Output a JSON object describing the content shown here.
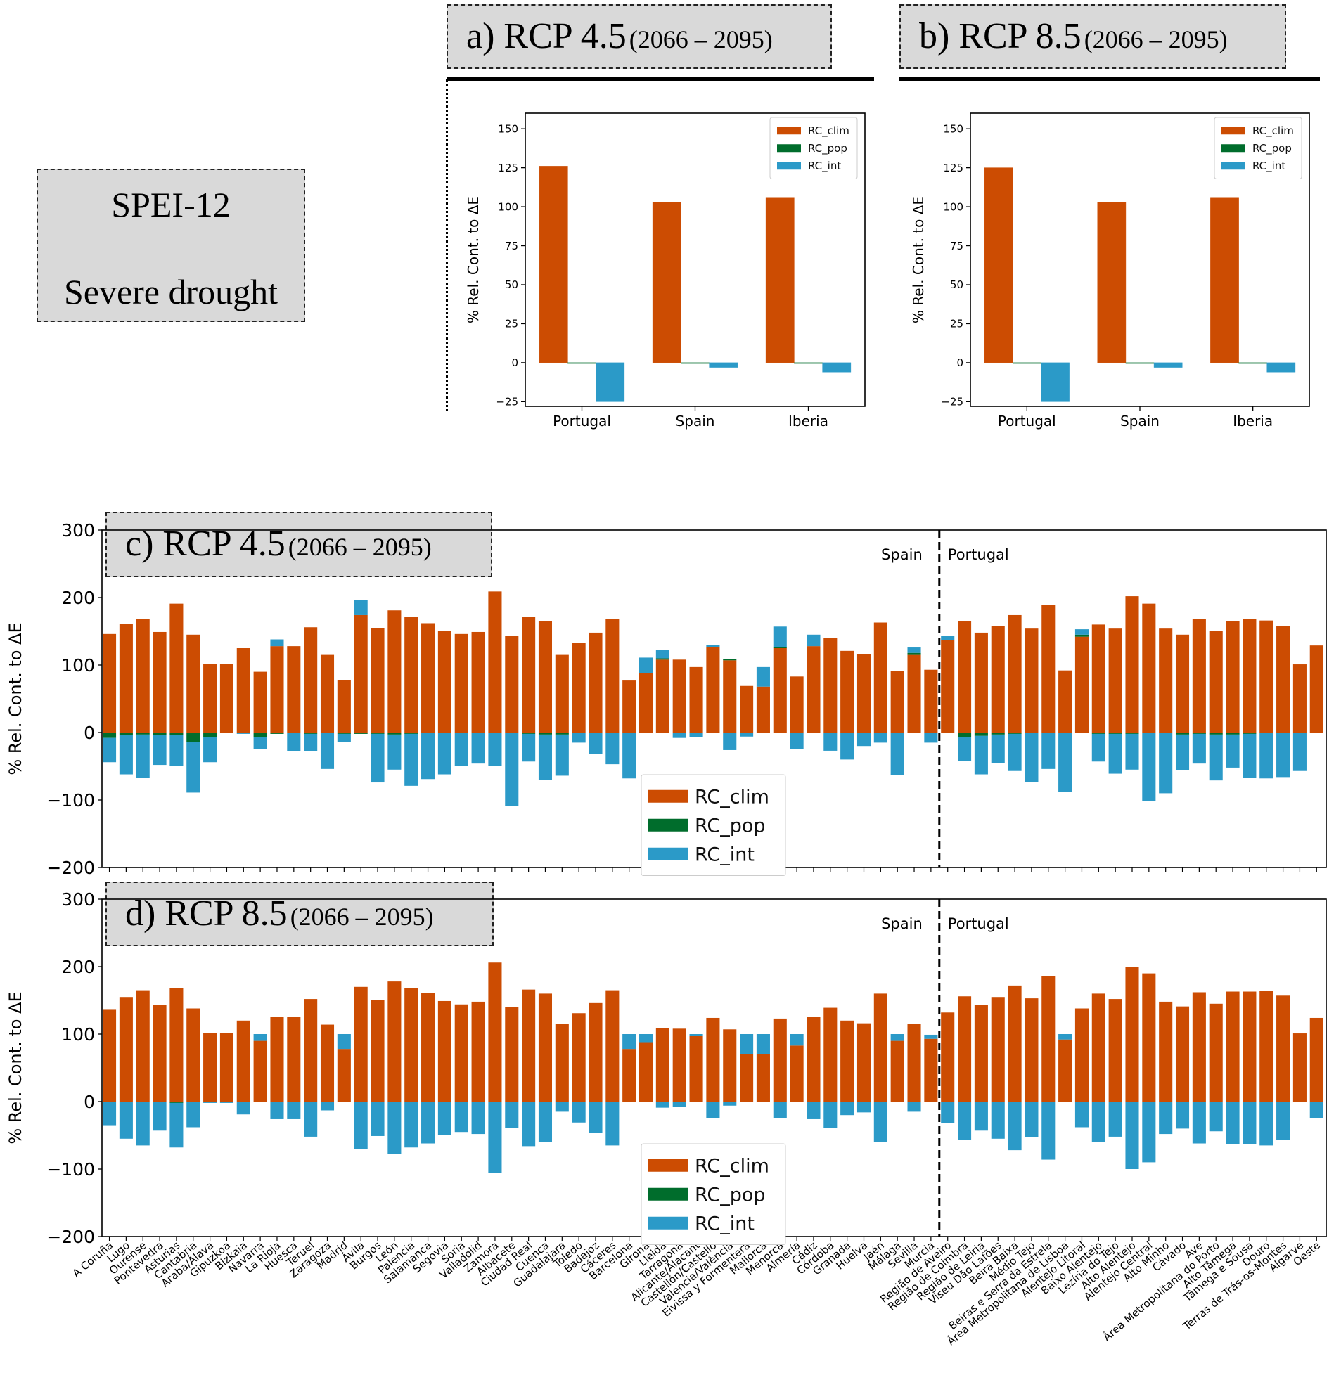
{
  "drought_box": {
    "line1": "SPEI-12",
    "line2": "Severe drought"
  },
  "panel_labels": {
    "a": {
      "letter": "a) RCP 4.5",
      "period": "(2066 – 2095)"
    },
    "b": {
      "letter": "b) RCP 8.5",
      "period": "(2066 – 2095)"
    },
    "c": {
      "letter": "c) RCP 4.5",
      "period": "(2066 – 2095)"
    },
    "d": {
      "letter": "d) RCP 8.5",
      "period": "(2066 – 2095)"
    }
  },
  "colors": {
    "clim": "#cc4c02",
    "pop": "#006d2c",
    "int": "#2b9ac8"
  },
  "chart_data": [
    {
      "id": "a",
      "type": "bar",
      "title": "a) RCP 4.5 (2066 – 2095)",
      "ylabel": "% Rel. Cont. to ΔE",
      "ylim": [
        -28,
        160
      ],
      "yticks": [
        -25,
        0,
        25,
        50,
        75,
        100,
        125,
        150
      ],
      "categories": [
        "Portugal",
        "Spain",
        "Iberia"
      ],
      "legend": "top-right",
      "series": [
        {
          "name": "RC_clim",
          "values": [
            126,
            103,
            106
          ]
        },
        {
          "name": "RC_pop",
          "values": [
            -0.5,
            0,
            -0.3
          ]
        },
        {
          "name": "RC_int",
          "values": [
            -25,
            -3,
            -6
          ]
        }
      ]
    },
    {
      "id": "b",
      "type": "bar",
      "title": "b) RCP 8.5 (2066 – 2095)",
      "ylabel": "% Rel. Cont. to ΔE",
      "ylim": [
        -28,
        160
      ],
      "yticks": [
        -25,
        0,
        25,
        50,
        75,
        100,
        125,
        150
      ],
      "categories": [
        "Portugal",
        "Spain",
        "Iberia"
      ],
      "legend": "top-right",
      "series": [
        {
          "name": "RC_clim",
          "values": [
            125,
            103,
            106
          ]
        },
        {
          "name": "RC_pop",
          "values": [
            -0.3,
            0,
            -0.2
          ]
        },
        {
          "name": "RC_int",
          "values": [
            -25,
            -3,
            -6
          ]
        }
      ]
    },
    {
      "id": "c",
      "type": "bar",
      "title": "c) RCP 4.5 (2066 – 2095)",
      "stacked": true,
      "ylabel": "% Rel. Cont. to ΔE",
      "ylim": [
        -200,
        300
      ],
      "yticks": [
        -200,
        -100,
        0,
        100,
        200,
        300
      ],
      "divider_after": "Murcia",
      "region_labels": [
        "Spain",
        "Portugal"
      ],
      "legend": "lower-center",
      "categories": [
        "A Coruña",
        "Lugo",
        "Ourense",
        "Pontevedra",
        "Asturias",
        "Cantabria",
        "Araba/Álava",
        "Gipuzkoa",
        "Bizkaia",
        "Navarra",
        "La Rioja",
        "Huesca",
        "Teruel",
        "Zaragoza",
        "Madrid",
        "Ávila",
        "Burgos",
        "León",
        "Palencia",
        "Salamanca",
        "Segovia",
        "Soria",
        "Valladolid",
        "Zamora",
        "Albacete",
        "Ciudad Real",
        "Cuenca",
        "Guadalajara",
        "Toledo",
        "Badajoz",
        "Cáceres",
        "Barcelona",
        "Girona",
        "Lleida",
        "Tarragona",
        "Alicante/Alacant",
        "Castellón/Castelló",
        "Valencia/València",
        "Eivissa y Formentera",
        "Mallorca",
        "Menorca",
        "Almería",
        "Cádiz",
        "Córdoba",
        "Granada",
        "Huelva",
        "Jaén",
        "Málaga",
        "Sevilla",
        "Murcia",
        "Região de Aveiro",
        "Região de Coimbra",
        "Região de Leiria",
        "Viseu Dão Lafões",
        "Beira Baixa",
        "Médio Tejo",
        "Beiras e Serra da Estrela",
        "Área Metropolitana de Lisboa",
        "Alentejo Litoral",
        "Baixo Alentejo",
        "Lezíria do Tejo",
        "Alto Alentejo",
        "Alentejo Central",
        "Alto Minho",
        "Cávado",
        "Ave",
        "Área Metropolitana do Porto",
        "Alto Tâmega",
        "Tâmega e Sousa",
        "Douro",
        "Terras de Trás-os-Montes",
        "Algarve",
        "Oeste"
      ],
      "series": [
        {
          "name": "RC_clim",
          "values": [
            146,
            161,
            168,
            149,
            191,
            145,
            102,
            102,
            125,
            90,
            128,
            128,
            156,
            115,
            78,
            174,
            155,
            181,
            171,
            162,
            151,
            146,
            149,
            209,
            143,
            171,
            165,
            115,
            133,
            148,
            168,
            77,
            88,
            108,
            108,
            97,
            127,
            107,
            69,
            68,
            125,
            83,
            128,
            140,
            121,
            116,
            163,
            91,
            115,
            93,
            137,
            165,
            148,
            158,
            174,
            154,
            189,
            92,
            142,
            160,
            154,
            202,
            191,
            154,
            145,
            168,
            150,
            165,
            168,
            166,
            158,
            101,
            129
          ]
        },
        {
          "name": "RC_pop",
          "values": [
            -8,
            -4,
            -3,
            -4,
            -4,
            -14,
            -7,
            -1,
            -1,
            -7,
            -2,
            -1,
            -2,
            -1,
            -2,
            -2,
            -2,
            -3,
            -2,
            -1,
            -1,
            -1,
            -1,
            -1,
            -1,
            -2,
            -3,
            -3,
            -1,
            -1,
            -1,
            -1,
            0,
            2,
            0,
            0,
            0,
            2,
            0,
            0,
            2,
            0,
            0,
            0,
            -1,
            0,
            0,
            -1,
            3,
            0,
            -1,
            -7,
            -5,
            -3,
            -2,
            -1,
            0,
            0,
            3,
            -2,
            -2,
            -2,
            -1,
            0,
            -3,
            -2,
            -3,
            -3,
            -2,
            -1,
            -1,
            0,
            0
          ]
        },
        {
          "name": "RC_int",
          "values": [
            -36,
            -58,
            -64,
            -44,
            -45,
            -75,
            -37,
            0,
            -1,
            -18,
            10,
            -27,
            -26,
            -53,
            -12,
            22,
            -72,
            -52,
            -77,
            -68,
            -61,
            -49,
            -45,
            -48,
            -108,
            -41,
            -67,
            -61,
            -14,
            -31,
            -46,
            -67,
            23,
            12,
            -8,
            -7,
            3,
            -26,
            -6,
            29,
            30,
            -25,
            17,
            -27,
            -39,
            -20,
            -15,
            -62,
            8,
            -15,
            6,
            -35,
            -57,
            -42,
            -55,
            -72,
            -54,
            -88,
            8,
            -41,
            -59,
            -53,
            -101,
            -90,
            -53,
            -44,
            -68,
            -49,
            -65,
            -67,
            -65,
            -57,
            0
          ]
        }
      ]
    },
    {
      "id": "d",
      "type": "bar",
      "title": "d) RCP 8.5 (2066 – 2095)",
      "stacked": true,
      "ylabel": "% Rel. Cont. to ΔE",
      "ylim": [
        -200,
        300
      ],
      "yticks": [
        -200,
        -100,
        0,
        100,
        200,
        300
      ],
      "divider_after": "Murcia",
      "region_labels": [
        "Spain",
        "Portugal"
      ],
      "legend": "lower-center",
      "categories": [
        "A Coruña",
        "Lugo",
        "Ourense",
        "Pontevedra",
        "Asturias",
        "Cantabria",
        "Araba/Álava",
        "Gipuzkoa",
        "Bizkaia",
        "Navarra",
        "La Rioja",
        "Huesca",
        "Teruel",
        "Zaragoza",
        "Madrid",
        "Ávila",
        "Burgos",
        "León",
        "Palencia",
        "Salamanca",
        "Segovia",
        "Soria",
        "Valladolid",
        "Zamora",
        "Albacete",
        "Ciudad Real",
        "Cuenca",
        "Guadalajara",
        "Toledo",
        "Badajoz",
        "Cáceres",
        "Barcelona",
        "Girona",
        "Lleida",
        "Tarragona",
        "Alicante/Alacant",
        "Castellón/Castelló",
        "Valencia/València",
        "Eivissa y Formentera",
        "Mallorca",
        "Menorca",
        "Almería",
        "Cádiz",
        "Córdoba",
        "Granada",
        "Huelva",
        "Jaén",
        "Málaga",
        "Sevilla",
        "Murcia",
        "Região de Aveiro",
        "Região de Coimbra",
        "Região de Leiria",
        "Viseu Dão Lafões",
        "Beira Baixa",
        "Médio Tejo",
        "Beiras e Serra da Estrela",
        "Área Metropolitana de Lisboa",
        "Alentejo Litoral",
        "Baixo Alentejo",
        "Lezíria do Tejo",
        "Alto Alentejo",
        "Alentejo Central",
        "Alto Minho",
        "Cávado",
        "Ave",
        "Área Metropolitana do Porto",
        "Alto Tâmega",
        "Tâmega e Sousa",
        "Douro",
        "Terras de Trás-os-Montes",
        "Algarve",
        "Oeste"
      ],
      "series": [
        {
          "name": "RC_clim",
          "values": [
            136,
            155,
            165,
            143,
            168,
            138,
            102,
            102,
            120,
            90,
            126,
            126,
            152,
            114,
            78,
            170,
            150,
            178,
            168,
            161,
            149,
            144,
            148,
            206,
            140,
            166,
            160,
            115,
            131,
            146,
            165,
            78,
            88,
            109,
            108,
            97,
            124,
            107,
            70,
            70,
            123,
            83,
            126,
            139,
            120,
            116,
            160,
            90,
            115,
            93,
            132,
            156,
            143,
            155,
            172,
            153,
            186,
            92,
            138,
            160,
            152,
            199,
            190,
            148,
            141,
            162,
            145,
            163,
            163,
            164,
            157,
            101,
            124
          ]
        },
        {
          "name": "RC_pop",
          "values": [
            0,
            0,
            0,
            0,
            -2,
            0,
            -1,
            -1,
            0,
            0,
            0,
            0,
            0,
            0,
            0,
            0,
            0,
            0,
            0,
            0,
            0,
            0,
            0,
            0,
            0,
            0,
            0,
            0,
            0,
            0,
            0,
            0,
            0,
            0,
            0,
            0,
            0,
            0,
            0,
            0,
            0,
            0,
            0,
            0,
            0,
            0,
            0,
            0,
            0,
            0,
            0,
            0,
            0,
            0,
            0,
            0,
            0,
            0,
            0,
            0,
            0,
            0,
            0,
            0,
            0,
            0,
            0,
            0,
            0,
            0,
            0,
            0,
            0
          ]
        },
        {
          "name": "RC_int",
          "values": [
            -36,
            -55,
            -65,
            -43,
            -66,
            -38,
            -1,
            -1,
            -19,
            10,
            -26,
            -26,
            -52,
            -13,
            22,
            -70,
            -51,
            -78,
            -68,
            -62,
            -49,
            -45,
            -48,
            -106,
            -39,
            -66,
            -60,
            -15,
            -31,
            -46,
            -65,
            22,
            12,
            -9,
            -8,
            3,
            -24,
            -6,
            30,
            30,
            -24,
            17,
            -26,
            -39,
            -20,
            -16,
            -60,
            10,
            -15,
            6,
            -32,
            -57,
            -43,
            -55,
            -72,
            -53,
            -86,
            8,
            -38,
            -60,
            -52,
            -100,
            -90,
            -48,
            -40,
            -62,
            -44,
            -63,
            -63,
            -65,
            -57,
            0,
            -24
          ]
        }
      ]
    }
  ]
}
